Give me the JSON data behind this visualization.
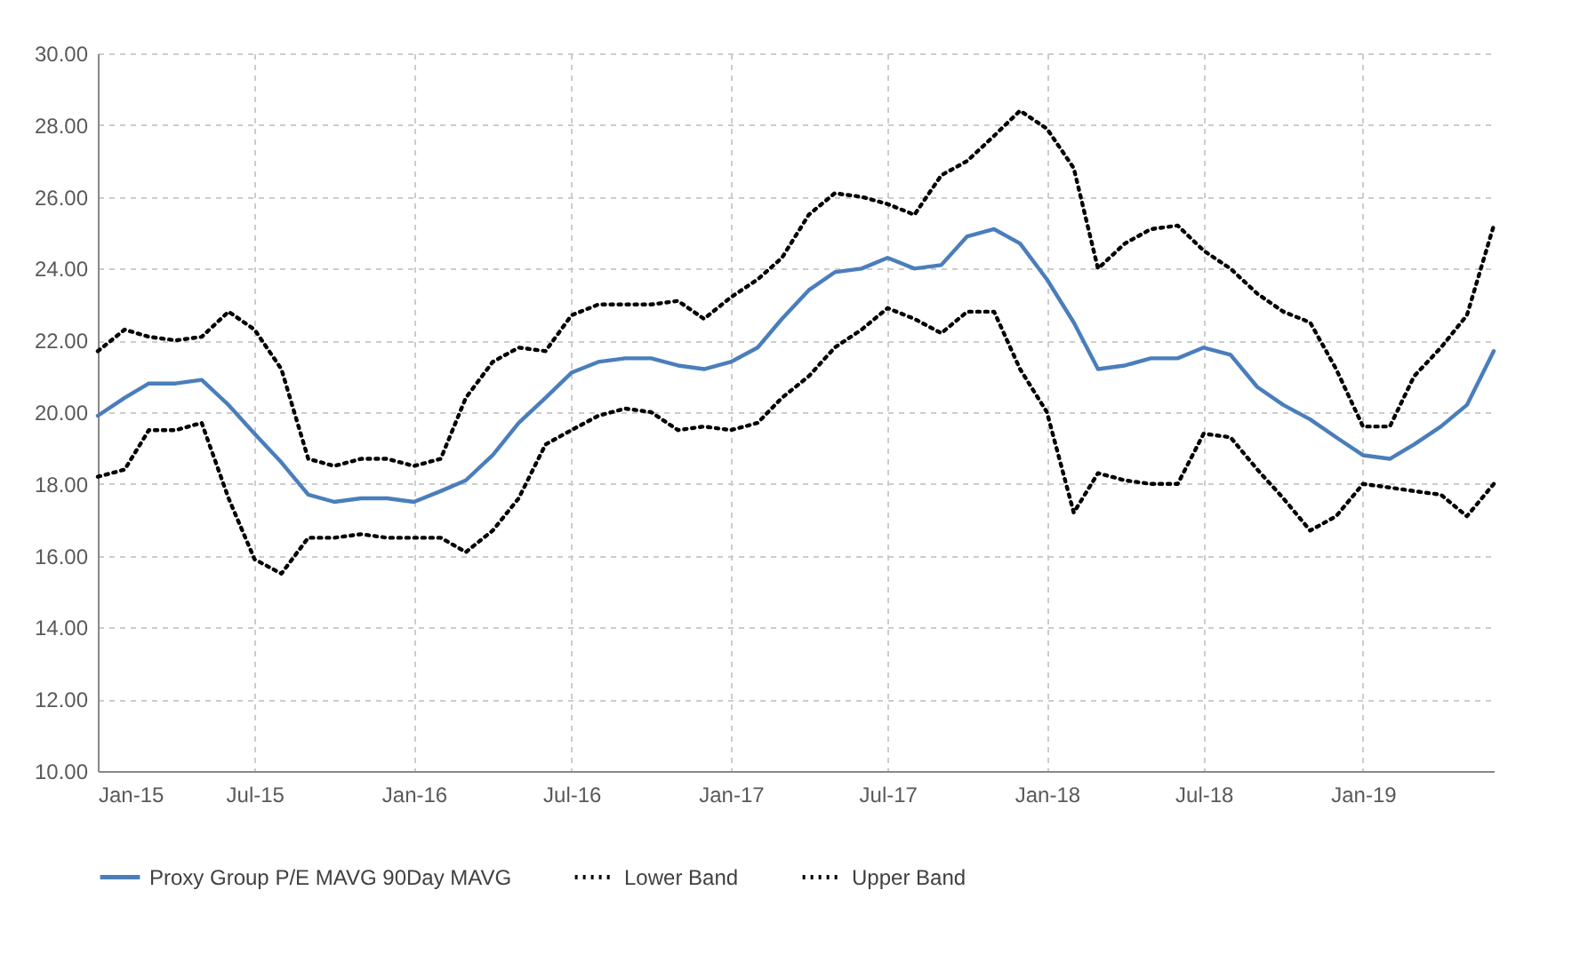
{
  "chart_data": {
    "type": "line",
    "x": [
      "2015-01",
      "2015-02",
      "2015-03",
      "2015-04",
      "2015-05",
      "2015-06",
      "2015-07",
      "2015-08",
      "2015-09",
      "2015-10",
      "2015-11",
      "2015-12",
      "2016-01",
      "2016-02",
      "2016-03",
      "2016-04",
      "2016-05",
      "2016-06",
      "2016-07",
      "2016-08",
      "2016-09",
      "2016-10",
      "2016-11",
      "2016-12",
      "2017-01",
      "2017-02",
      "2017-03",
      "2017-04",
      "2017-05",
      "2017-06",
      "2017-07",
      "2017-08",
      "2017-09",
      "2017-10",
      "2017-11",
      "2017-12",
      "2018-01",
      "2018-02",
      "2018-03",
      "2018-04",
      "2018-05",
      "2018-06",
      "2018-07",
      "2018-08",
      "2018-09",
      "2018-10",
      "2018-11",
      "2018-12",
      "2019-01",
      "2019-02",
      "2019-03",
      "2019-04",
      "2019-05",
      "2019-06"
    ],
    "series": [
      {
        "name": "Proxy Group P/E MAVG 90Day MAVG",
        "color": "#4a7ebb",
        "line_style": "solid",
        "values": [
          19.9,
          20.4,
          20.8,
          20.8,
          20.9,
          20.2,
          19.4,
          18.6,
          17.7,
          17.5,
          17.6,
          17.6,
          17.5,
          17.8,
          18.1,
          18.8,
          19.7,
          20.4,
          21.1,
          21.4,
          21.5,
          21.5,
          21.3,
          21.2,
          21.4,
          21.8,
          22.6,
          23.4,
          23.9,
          24.0,
          24.3,
          24.0,
          24.1,
          24.9,
          25.1,
          24.7,
          23.7,
          22.5,
          21.2,
          21.3,
          21.5,
          21.5,
          21.8,
          21.6,
          20.7,
          20.2,
          19.8,
          19.3,
          18.8,
          18.7,
          19.1,
          19.6,
          20.2,
          21.7
        ]
      },
      {
        "name": "Lower Band",
        "color": "#000000",
        "line_style": "dotted",
        "values": [
          18.2,
          18.4,
          19.5,
          19.5,
          19.7,
          17.6,
          15.9,
          15.5,
          16.5,
          16.5,
          16.6,
          16.5,
          16.5,
          16.5,
          16.1,
          16.7,
          17.6,
          19.1,
          19.5,
          19.9,
          20.1,
          20.0,
          19.5,
          19.6,
          19.5,
          19.7,
          20.4,
          21.0,
          21.8,
          22.3,
          22.9,
          22.6,
          22.2,
          22.8,
          22.8,
          21.2,
          20.0,
          17.2,
          18.3,
          18.1,
          18.0,
          18.0,
          19.4,
          19.3,
          18.4,
          17.6,
          16.7,
          17.1,
          18.0,
          17.9,
          17.8,
          17.7,
          17.1,
          18.0
        ]
      },
      {
        "name": "Upper Band",
        "color": "#000000",
        "line_style": "dotted",
        "values": [
          21.7,
          22.3,
          22.1,
          22.0,
          22.1,
          22.8,
          22.3,
          21.2,
          18.7,
          18.5,
          18.7,
          18.7,
          18.5,
          18.7,
          20.4,
          21.4,
          21.8,
          21.7,
          22.7,
          23.0,
          23.0,
          23.0,
          23.1,
          22.6,
          23.2,
          23.7,
          24.3,
          25.5,
          26.1,
          26.0,
          25.8,
          25.5,
          26.6,
          27.0,
          27.7,
          28.4,
          27.9,
          26.8,
          24.0,
          24.7,
          25.1,
          25.2,
          24.5,
          24.0,
          23.3,
          22.8,
          22.5,
          21.2,
          19.6,
          19.6,
          21.0,
          21.8,
          22.7,
          25.2
        ]
      }
    ],
    "xlim": [
      "2015-01",
      "2019-06"
    ],
    "xticks": [
      {
        "value": "2015-01",
        "label": "Jan-15"
      },
      {
        "value": "2015-07",
        "label": "Jul-15"
      },
      {
        "value": "2016-01",
        "label": "Jan-16"
      },
      {
        "value": "2016-07",
        "label": "Jul-16"
      },
      {
        "value": "2017-01",
        "label": "Jan-17"
      },
      {
        "value": "2017-07",
        "label": "Jul-17"
      },
      {
        "value": "2018-01",
        "label": "Jan-18"
      },
      {
        "value": "2018-07",
        "label": "Jul-18"
      },
      {
        "value": "2019-01",
        "label": "Jan-19"
      }
    ],
    "ylim": [
      10,
      30
    ],
    "yticks": [
      {
        "value": 10,
        "label": "10.00"
      },
      {
        "value": 12,
        "label": "12.00"
      },
      {
        "value": 14,
        "label": "14.00"
      },
      {
        "value": 16,
        "label": "16.00"
      },
      {
        "value": 18,
        "label": "18.00"
      },
      {
        "value": 20,
        "label": "20.00"
      },
      {
        "value": 22,
        "label": "22.00"
      },
      {
        "value": 24,
        "label": "24.00"
      },
      {
        "value": 26,
        "label": "26.00"
      },
      {
        "value": 28,
        "label": "28.00"
      },
      {
        "value": 30,
        "label": "30.00"
      }
    ],
    "grid": true,
    "legend": "bottom",
    "marker": "none"
  }
}
